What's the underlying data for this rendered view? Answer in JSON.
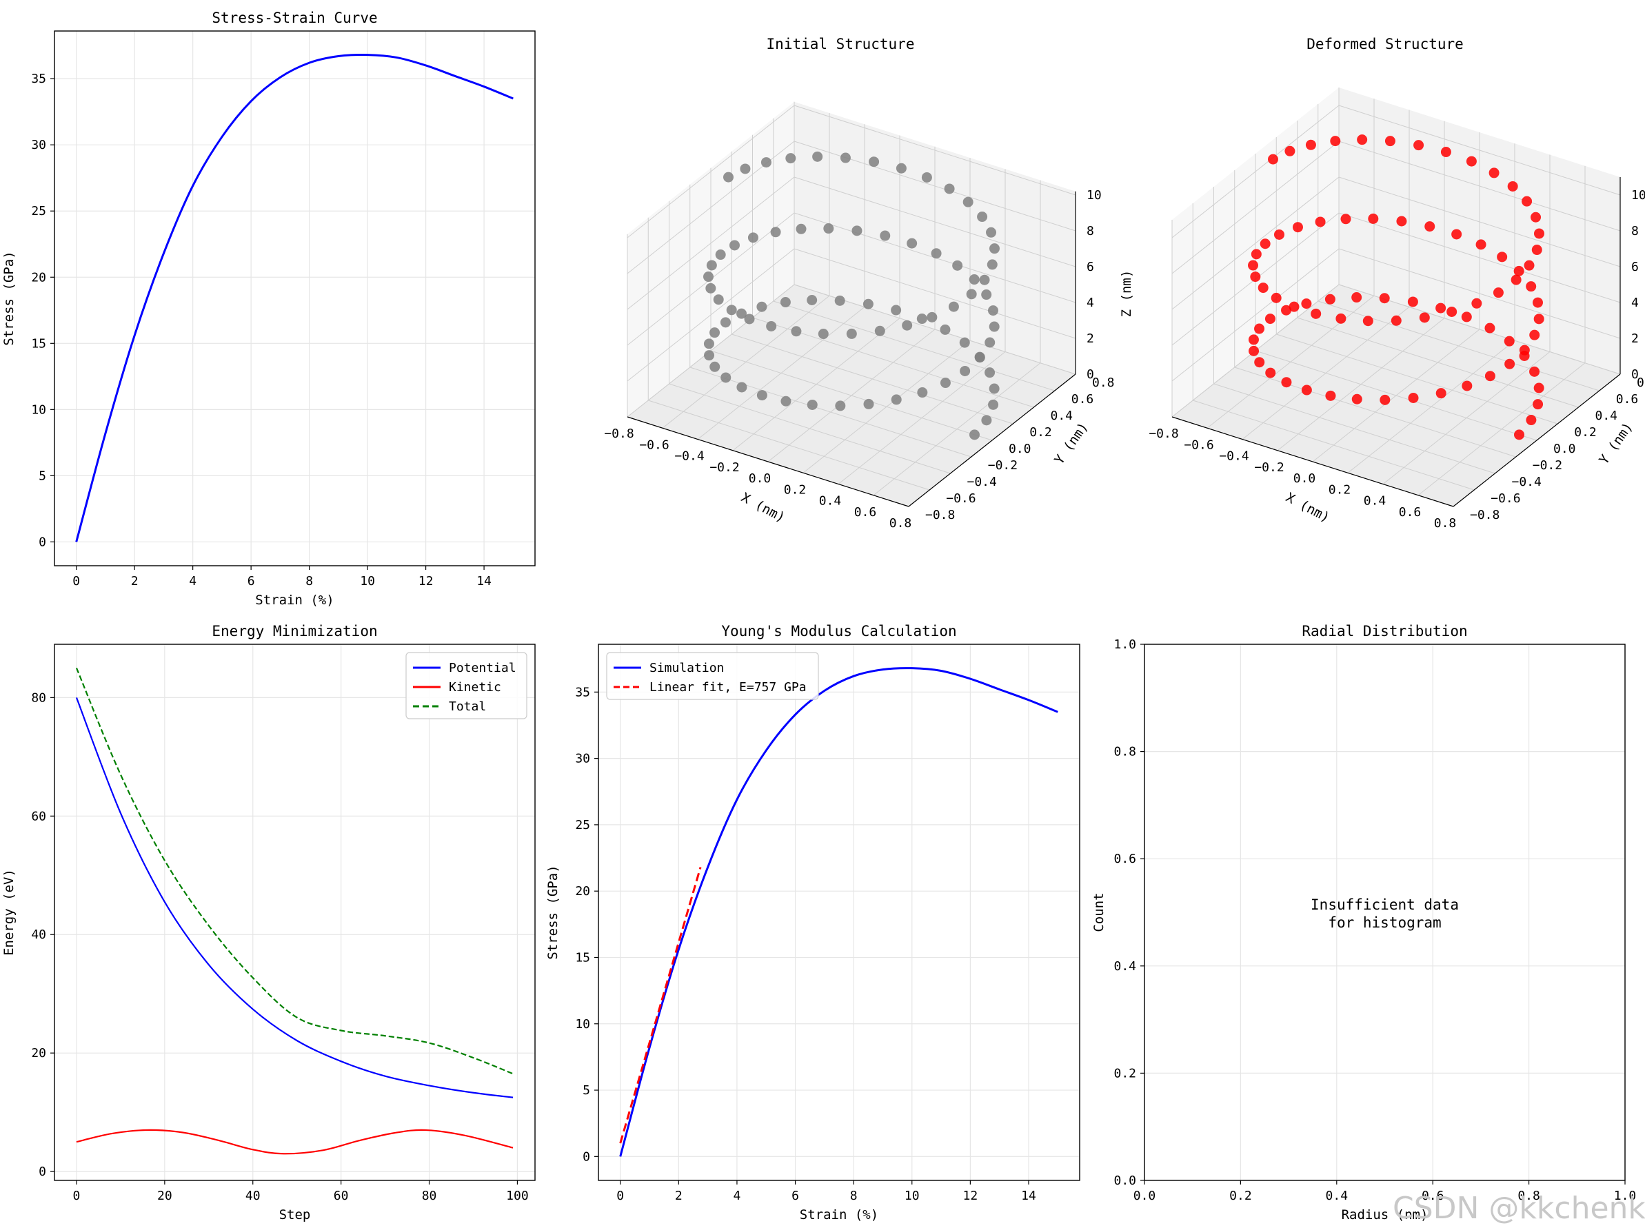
{
  "watermark": "CSDN @kkchenkx",
  "colors": {
    "blue": "#0000ff",
    "red": "#ff0000",
    "green": "#008000",
    "gray": "#808080",
    "grid": "#e6e6e6"
  },
  "chart_data": [
    {
      "id": "stress_strain",
      "type": "line",
      "title": "Stress-Strain Curve",
      "xlabel": "Strain (%)",
      "ylabel": "Stress (GPa)",
      "xlim": [
        -0.75,
        15.75
      ],
      "ylim": [
        -1.8,
        38.6
      ],
      "xticks": [
        0,
        2,
        4,
        6,
        8,
        10,
        12,
        14
      ],
      "yticks": [
        0,
        5,
        10,
        15,
        20,
        25,
        30,
        35
      ],
      "grid": true,
      "series": [
        {
          "name": "Stress",
          "color": "#0000ff",
          "x": [
            0,
            1,
            2,
            3,
            4,
            5,
            6,
            7,
            8,
            9,
            10,
            11,
            12,
            13,
            14,
            15
          ],
          "y": [
            0,
            8.2,
            15.6,
            21.8,
            26.9,
            30.6,
            33.3,
            35.1,
            36.2,
            36.7,
            36.8,
            36.6,
            36.0,
            35.2,
            34.4,
            33.5
          ]
        }
      ]
    },
    {
      "id": "initial_structure",
      "type": "scatter3d",
      "title": "Initial Structure",
      "xlabel": "X (nm)",
      "ylabel": "Y (nm)",
      "zlabel": "Z (nm)",
      "xticks": [
        "−0.8",
        "−0.6",
        "−0.4",
        "−0.2",
        "0.0",
        "0.2",
        "0.4",
        "0.6",
        "0.8"
      ],
      "yticks": [
        "−0.8",
        "−0.6",
        "−0.4",
        "−0.2",
        "0.0",
        "0.2",
        "0.4",
        "0.6",
        "0.8"
      ],
      "zticks": [
        "0",
        "2",
        "4",
        "6",
        "8",
        "10"
      ],
      "helix": {
        "radius": 0.7,
        "turns": 2.5,
        "points": 80,
        "z_range": [
          0,
          10
        ]
      },
      "color": "#808080"
    },
    {
      "id": "deformed_structure",
      "type": "scatter3d",
      "title": "Deformed Structure",
      "xlabel": "X (nm)",
      "ylabel": "Y (nm)",
      "zlabel": "",
      "xticks": [
        "−0.8",
        "−0.6",
        "−0.4",
        "−0.2",
        "0.0",
        "0.2",
        "0.4",
        "0.6",
        "0.8"
      ],
      "yticks": [
        "−0.8",
        "−0.6",
        "−0.4",
        "−0.2",
        "0.0",
        "0.2",
        "0.4",
        "0.6",
        "0.8"
      ],
      "zticks": [
        "0",
        "2",
        "4",
        "6",
        "8",
        "10"
      ],
      "helix": {
        "radius": 0.7,
        "turns": 2.5,
        "points": 80,
        "z_range": [
          0,
          11
        ]
      },
      "color": "#ff0000"
    },
    {
      "id": "energy_min",
      "type": "line",
      "title": "Energy Minimization",
      "xlabel": "Step",
      "ylabel": "Energy (eV)",
      "xlim": [
        -5,
        104
      ],
      "ylim": [
        -1.5,
        89
      ],
      "xticks": [
        0,
        20,
        40,
        60,
        80,
        100
      ],
      "yticks": [
        0,
        20,
        40,
        60,
        80
      ],
      "grid": true,
      "legend": "top-right",
      "series": [
        {
          "name": "Potential",
          "color": "#0000ff",
          "dash": "solid",
          "x": [
            0,
            10,
            20,
            30,
            40,
            50,
            60,
            70,
            80,
            90,
            99
          ],
          "y": [
            80,
            60.5,
            45.5,
            34.9,
            27.4,
            22.1,
            18.6,
            16.1,
            14.5,
            13.3,
            12.5
          ]
        },
        {
          "name": "Kinetic",
          "color": "#ff0000",
          "dash": "solid",
          "x": [
            0,
            8,
            16,
            24,
            32,
            40,
            47,
            56,
            64,
            72,
            79,
            88,
            99
          ],
          "y": [
            5,
            6.4,
            7,
            6.6,
            5.3,
            3.7,
            3,
            3.6,
            5.2,
            6.5,
            7,
            6.1,
            4
          ]
        },
        {
          "name": "Total",
          "color": "#008000",
          "dash": "dashed",
          "x": [
            0,
            10,
            20,
            30,
            40,
            50,
            60,
            70,
            80,
            90,
            99
          ],
          "y": [
            85,
            67,
            52.5,
            41.5,
            32.7,
            26,
            23.8,
            22.9,
            21.7,
            19.2,
            16.5
          ]
        }
      ]
    },
    {
      "id": "youngs_modulus",
      "type": "line",
      "title": "Young's Modulus Calculation",
      "xlabel": "Strain (%)",
      "ylabel": "Stress (GPa)",
      "xlim": [
        -0.75,
        15.75
      ],
      "ylim": [
        -1.8,
        38.6
      ],
      "xticks": [
        0,
        2,
        4,
        6,
        8,
        10,
        12,
        14
      ],
      "yticks": [
        0,
        5,
        10,
        15,
        20,
        25,
        30,
        35
      ],
      "grid": true,
      "legend": "top-left",
      "series": [
        {
          "name": "Simulation",
          "color": "#0000ff",
          "dash": "solid",
          "x": [
            0,
            1,
            2,
            3,
            4,
            5,
            6,
            7,
            8,
            9,
            10,
            11,
            12,
            13,
            14,
            15
          ],
          "y": [
            0,
            8.2,
            15.6,
            21.8,
            26.9,
            30.6,
            33.3,
            35.1,
            36.2,
            36.7,
            36.8,
            36.6,
            36.0,
            35.2,
            34.4,
            33.5
          ]
        },
        {
          "name": "Linear fit, E=757 GPa",
          "color": "#ff0000",
          "dash": "dashed",
          "x": [
            0,
            2.75
          ],
          "y": [
            1.0,
            21.8
          ]
        }
      ]
    },
    {
      "id": "radial_distribution",
      "type": "bar",
      "title": "Radial Distribution",
      "xlabel": "Radius (nm)",
      "ylabel": "Count",
      "xlim": [
        0,
        1
      ],
      "ylim": [
        0,
        1
      ],
      "xticks": [
        "0.0",
        "0.2",
        "0.4",
        "0.6",
        "0.8",
        "1.0"
      ],
      "yticks": [
        "0.0",
        "0.2",
        "0.4",
        "0.6",
        "0.8",
        "1.0"
      ],
      "grid": true,
      "message": [
        "Insufficient data",
        "for histogram"
      ],
      "series": []
    }
  ]
}
